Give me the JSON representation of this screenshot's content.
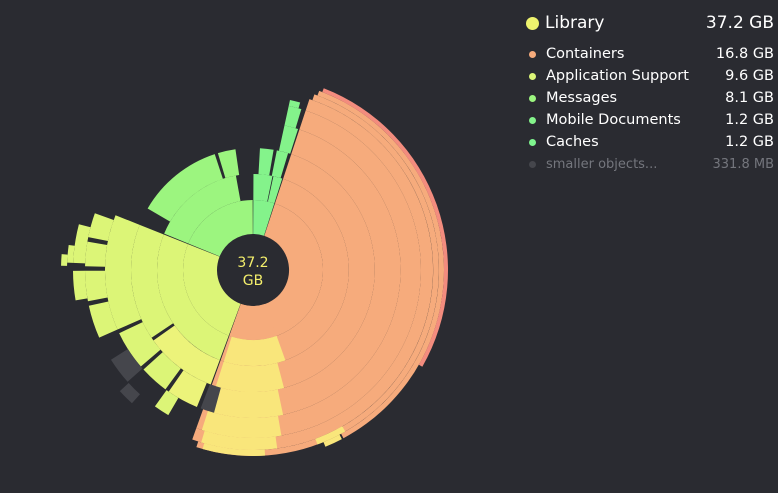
{
  "window": {
    "background": "#2a2b31"
  },
  "center_label": {
    "line1": "37.2",
    "line2": "GB",
    "color": "#f4ef6c"
  },
  "legend": {
    "root": {
      "name": "Library",
      "size": "37.2 GB",
      "color": "#eef36e"
    },
    "items": [
      {
        "name": "Containers",
        "size": "16.8 GB",
        "color": "#f6ab7c"
      },
      {
        "name": "Application Support",
        "size": "9.6 GB",
        "color": "#dcf577"
      },
      {
        "name": "Messages",
        "size": "8.1 GB",
        "color": "#9cf57f"
      },
      {
        "name": "Mobile Documents",
        "size": "1.2 GB",
        "color": "#84f38b"
      },
      {
        "name": "Caches",
        "size": "1.2 GB",
        "color": "#7ef48e"
      }
    ],
    "other": {
      "name": "smaller objects...",
      "size": "331.8  MB",
      "color": "#45464c"
    }
  }
}
